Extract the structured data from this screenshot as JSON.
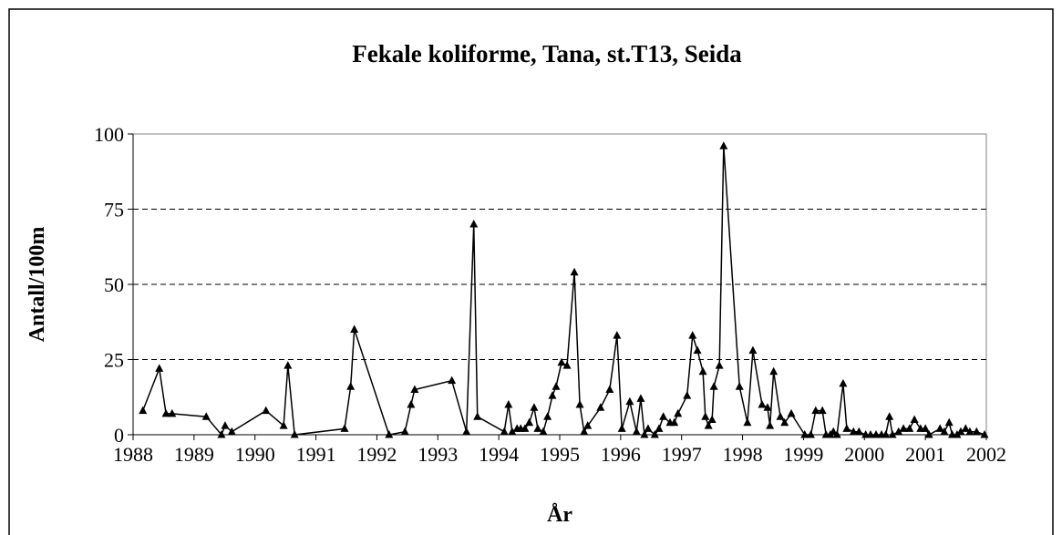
{
  "chart_data": {
    "type": "line",
    "title": "Fekale koliforme, Tana, st.T13, Seida",
    "x_label": "År",
    "y_label": "Antall/100m",
    "color": "#000000",
    "grid": true,
    "xlim": [
      1988,
      2002
    ],
    "xticks": [
      1988,
      1989,
      1990,
      1991,
      1992,
      1993,
      1994,
      1995,
      1996,
      1997,
      1998,
      1999,
      2000,
      2001,
      2002
    ],
    "ylim": [
      0,
      100
    ],
    "yticks": [
      0,
      25,
      50,
      75,
      100
    ],
    "x": [
      1988.16,
      1988.43,
      1988.54,
      1988.64,
      1989.2,
      1989.45,
      1989.51,
      1989.62,
      1990.18,
      1990.47,
      1990.54,
      1990.65,
      1991.47,
      1991.57,
      1991.63,
      1992.2,
      1992.46,
      1992.56,
      1992.62,
      1993.23,
      1993.47,
      1993.59,
      1993.65,
      1994.09,
      1994.16,
      1994.22,
      1994.3,
      1994.36,
      1994.43,
      1994.5,
      1994.58,
      1994.64,
      1994.73,
      1994.8,
      1994.88,
      1994.94,
      1995.03,
      1995.12,
      1995.24,
      1995.33,
      1995.4,
      1995.46,
      1995.67,
      1995.82,
      1995.94,
      1996.02,
      1996.15,
      1996.26,
      1996.33,
      1996.39,
      1996.45,
      1996.56,
      1996.63,
      1996.7,
      1996.81,
      1996.88,
      1996.94,
      1997.09,
      1997.18,
      1997.26,
      1997.35,
      1997.39,
      1997.44,
      1997.5,
      1997.53,
      1997.62,
      1997.69,
      1997.95,
      1998.08,
      1998.17,
      1998.32,
      1998.41,
      1998.45,
      1998.51,
      1998.62,
      1998.69,
      1998.8,
      1999.02,
      1999.12,
      1999.2,
      1999.31,
      1999.37,
      1999.44,
      1999.49,
      1999.55,
      1999.65,
      1999.71,
      1999.82,
      1999.91,
      2000.02,
      2000.1,
      2000.19,
      2000.28,
      2000.35,
      2000.41,
      2000.46,
      2000.56,
      2000.64,
      2000.74,
      2000.82,
      2000.92,
      2001.0,
      2001.06,
      2001.24,
      2001.31,
      2001.39,
      2001.44,
      2001.52,
      2001.58,
      2001.66,
      2001.73,
      2001.84,
      2001.97
    ],
    "values": [
      8,
      22,
      7,
      7,
      6,
      0,
      3,
      1,
      8,
      3,
      23,
      0,
      2,
      16,
      35,
      0,
      1,
      10,
      15,
      18,
      1,
      70,
      6,
      1,
      10,
      1,
      2,
      2,
      2,
      4,
      9,
      2,
      1,
      6,
      13,
      16,
      24,
      23,
      54,
      10,
      1,
      3,
      9,
      15,
      33,
      2,
      11,
      1,
      12,
      0,
      2,
      0,
      2,
      6,
      4,
      4,
      7,
      13,
      33,
      28,
      21,
      6,
      3,
      5,
      16,
      23,
      96,
      16,
      4,
      28,
      10,
      9,
      3,
      21,
      6,
      4,
      7,
      0,
      0,
      8,
      8,
      0,
      0,
      1,
      0,
      17,
      2,
      1,
      1,
      0,
      0,
      0,
      0,
      0,
      6,
      0,
      1,
      2,
      2,
      5,
      2,
      2,
      0,
      2,
      1,
      4,
      0,
      0,
      1,
      2,
      1,
      1,
      0
    ]
  }
}
